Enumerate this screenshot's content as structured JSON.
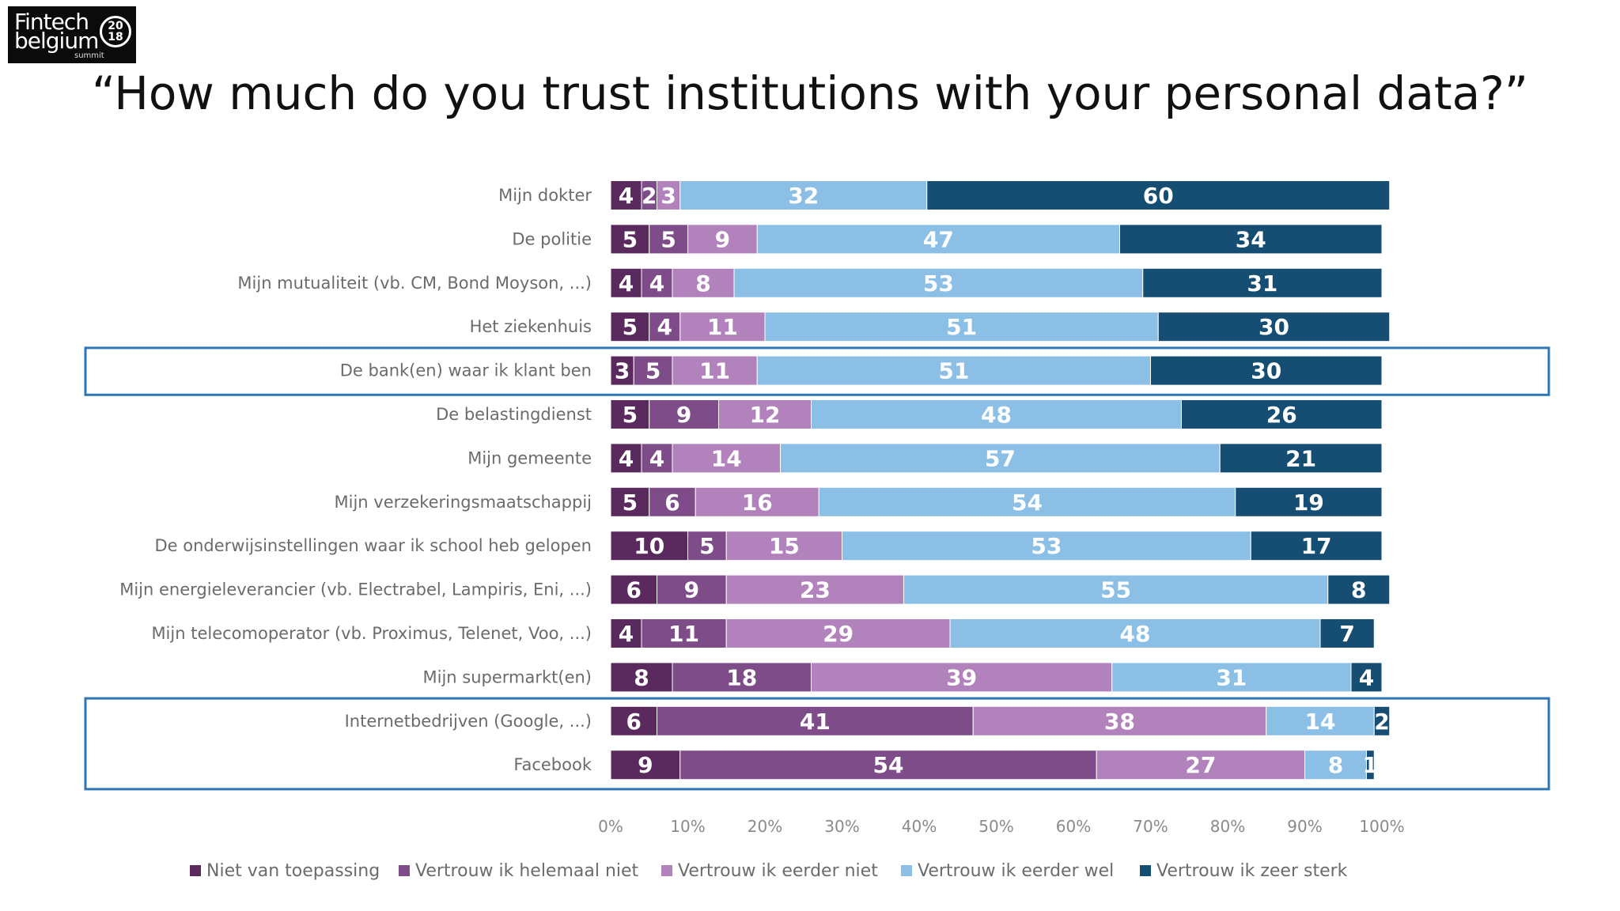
{
  "logo": {
    "line1": "Fintech",
    "line2": "belgium",
    "year_top": "20",
    "year_bottom": "18",
    "sub": "summit"
  },
  "title": "“How much do you trust institutions with your personal data?”",
  "colors": [
    "#5a2a5e",
    "#7f4c8a",
    "#b282bd",
    "#8cbfe6",
    "#154e72"
  ],
  "highlight_color": "#2f76b5",
  "chart_data": {
    "type": "bar",
    "orientation": "horizontal",
    "stacked": true,
    "title": "",
    "xlabel": "",
    "ylabel": "",
    "xlim": [
      0,
      100
    ],
    "x_ticks": [
      "0%",
      "10%",
      "20%",
      "30%",
      "40%",
      "50%",
      "60%",
      "70%",
      "80%",
      "90%",
      "100%"
    ],
    "categories": [
      "Mijn dokter",
      "De politie",
      "Mijn mutualiteit (vb. CM, Bond Moyson, ...)",
      "Het ziekenhuis",
      "De bank(en) waar ik klant ben",
      "De belastingdienst",
      "Mijn gemeente",
      "Mijn verzekeringsmaatschappij",
      "De onderwijsinstellingen waar ik school heb gelopen",
      "Mijn energieleverancier (vb. Electrabel, Lampiris, Eni, ...)",
      "Mijn telecomoperator (vb. Proximus, Telenet, Voo, ...)",
      "Mijn supermarkt(en)",
      "Internetbedrijven (Google, ...)",
      "Facebook"
    ],
    "series": [
      {
        "name": "Niet van toepassing",
        "values": [
          4,
          5,
          4,
          5,
          3,
          5,
          4,
          5,
          10,
          6,
          4,
          8,
          6,
          9
        ]
      },
      {
        "name": "Vertrouw ik helemaal niet",
        "values": [
          2,
          5,
          4,
          4,
          5,
          9,
          4,
          6,
          5,
          9,
          11,
          18,
          41,
          54
        ]
      },
      {
        "name": "Vertrouw ik eerder niet",
        "values": [
          3,
          9,
          8,
          11,
          11,
          12,
          14,
          16,
          15,
          23,
          29,
          39,
          38,
          27
        ]
      },
      {
        "name": "Vertrouw ik eerder wel",
        "values": [
          32,
          47,
          53,
          51,
          51,
          48,
          57,
          54,
          53,
          55,
          48,
          31,
          14,
          8
        ]
      },
      {
        "name": "Vertrouw ik zeer sterk",
        "values": [
          60,
          34,
          31,
          30,
          30,
          26,
          21,
          19,
          17,
          8,
          7,
          4,
          2,
          1
        ]
      }
    ],
    "highlighted_groups": [
      [
        4
      ],
      [
        12,
        13
      ]
    ],
    "grid": false,
    "legend_position": "bottom"
  }
}
